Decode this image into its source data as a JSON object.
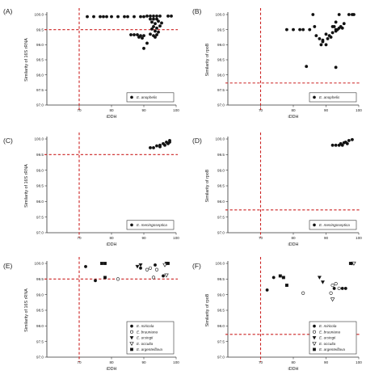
{
  "panels": [
    {
      "label": "(A)",
      "ylabel": "Similarity of 16S rRNA",
      "xlabel": "iDDH",
      "xlim": [
        60,
        100
      ],
      "ylim": [
        97.0,
        100.0
      ],
      "xticks": [
        "70",
        "80",
        "90",
        "100"
      ],
      "yticks": [
        "97.0",
        "97.5",
        "98.0",
        "98.5",
        "99.0",
        "99.5",
        "100.0"
      ],
      "cutoff_x": 70,
      "cutoff_y": 99.5,
      "legend": [
        {
          "name": "E. anophelis",
          "marker": "filled-circle"
        }
      ],
      "legend_position": "bottom-right",
      "series": [
        {
          "name": "E. anophelis",
          "marker": "filled-circle",
          "points": [
            [
              72.5,
              99.93
            ],
            [
              74.5,
              99.93
            ],
            [
              76.5,
              99.93
            ],
            [
              77.5,
              99.93
            ],
            [
              78.5,
              99.93
            ],
            [
              80,
              99.93
            ],
            [
              82,
              99.93
            ],
            [
              84,
              99.93
            ],
            [
              85,
              99.93
            ],
            [
              87,
              99.93
            ],
            [
              89,
              99.93
            ],
            [
              90,
              99.93
            ],
            [
              91,
              99.95
            ],
            [
              92,
              99.95
            ],
            [
              93,
              99.95
            ],
            [
              94,
              99.95
            ],
            [
              95,
              99.95
            ],
            [
              92,
              99.85
            ],
            [
              93,
              99.85
            ],
            [
              94,
              99.85
            ],
            [
              92.5,
              99.75
            ],
            [
              93.5,
              99.7
            ],
            [
              94.5,
              99.78
            ],
            [
              95.5,
              99.72
            ],
            [
              93,
              99.6
            ],
            [
              94,
              99.55
            ],
            [
              95,
              99.62
            ],
            [
              92.5,
              99.52
            ],
            [
              93.5,
              99.45
            ],
            [
              94.5,
              99.42
            ],
            [
              92,
              99.35
            ],
            [
              93,
              99.3
            ],
            [
              94,
              99.33
            ],
            [
              93.5,
              99.25
            ],
            [
              86,
              99.33
            ],
            [
              87,
              99.33
            ],
            [
              88,
              99.33
            ],
            [
              89,
              99.3
            ],
            [
              90,
              99.3
            ],
            [
              88.5,
              99.25
            ],
            [
              89.5,
              99.22
            ],
            [
              91,
              99.05
            ],
            [
              90,
              98.88
            ],
            [
              97.5,
              99.95
            ],
            [
              98.5,
              99.95
            ]
          ]
        }
      ]
    },
    {
      "label": "(B)",
      "ylabel": "Similarity of rpoB",
      "xlabel": "iDDH",
      "xlim": [
        60,
        100
      ],
      "ylim": [
        97.0,
        100.0
      ],
      "xticks": [
        "70",
        "80",
        "90",
        "100"
      ],
      "yticks": [
        "97.0",
        "97.5",
        "98.0",
        "98.5",
        "99.0",
        "99.5",
        "100.0"
      ],
      "cutoff_x": 70,
      "cutoff_y": 97.73,
      "legend": [
        {
          "name": "E. anophelis",
          "marker": "filled-circle"
        }
      ],
      "legend_position": "bottom-right",
      "series": [
        {
          "name": "E. anophelis",
          "marker": "filled-circle",
          "points": [
            [
              78,
              99.5
            ],
            [
              80,
              99.5
            ],
            [
              82,
              99.5
            ],
            [
              83,
              99.5
            ],
            [
              85,
              99.5
            ],
            [
              86,
              100.0
            ],
            [
              86.5,
              99.6
            ],
            [
              87,
              99.3
            ],
            [
              88,
              99.2
            ],
            [
              89,
              99.1
            ],
            [
              90,
              99.0
            ],
            [
              90.5,
              99.2
            ],
            [
              91,
              99.3
            ],
            [
              91.5,
              99.25
            ],
            [
              92,
              99.4
            ],
            [
              92.5,
              99.6
            ],
            [
              93,
              99.5
            ],
            [
              93.5,
              99.5
            ],
            [
              94,
              99.55
            ],
            [
              94.5,
              99.6
            ],
            [
              95,
              99.55
            ],
            [
              95.5,
              99.7
            ],
            [
              93,
              99.75
            ],
            [
              94,
              100.0
            ],
            [
              92,
              99.6
            ],
            [
              93,
              99.45
            ],
            [
              90,
              99.35
            ],
            [
              89,
              99.15
            ],
            [
              88.5,
              99.0
            ],
            [
              84,
              98.28
            ],
            [
              93,
              98.25
            ],
            [
              97,
              100.0
            ],
            [
              98,
              100.0
            ],
            [
              98.5,
              100.0
            ]
          ]
        }
      ]
    },
    {
      "label": "(C)",
      "ylabel": "Similarity of 16S rRNA",
      "xlabel": "iDDH",
      "xlim": [
        60,
        100
      ],
      "ylim": [
        97.0,
        100.0
      ],
      "xticks": [
        "70",
        "80",
        "90",
        "100"
      ],
      "yticks": [
        "97.0",
        "97.5",
        "98.0",
        "98.5",
        "99.0",
        "99.5",
        "100.0"
      ],
      "cutoff_x": 70,
      "cutoff_y": 99.5,
      "legend": [
        {
          "name": "E. meningoseptica",
          "marker": "filled-circle"
        }
      ],
      "legend_position": "bottom-right",
      "series": [
        {
          "name": "E. meningoseptica",
          "marker": "filled-circle",
          "points": [
            [
              92,
              99.72
            ],
            [
              93,
              99.72
            ],
            [
              94,
              99.78
            ],
            [
              95,
              99.8
            ],
            [
              96,
              99.85
            ],
            [
              97,
              99.9
            ],
            [
              98,
              99.95
            ],
            [
              96.5,
              99.8
            ],
            [
              97.5,
              99.85
            ],
            [
              95,
              99.75
            ],
            [
              98,
              99.9
            ]
          ]
        }
      ]
    },
    {
      "label": "(D)",
      "ylabel": "Similarity of rpoB",
      "xlabel": "iDDH",
      "xlim": [
        60,
        100
      ],
      "ylim": [
        97.0,
        100.0
      ],
      "xticks": [
        "70",
        "80",
        "90",
        "100"
      ],
      "yticks": [
        "97.0",
        "97.5",
        "98.0",
        "98.5",
        "99.0",
        "99.5",
        "100.0"
      ],
      "cutoff_x": 70,
      "cutoff_y": 97.73,
      "legend": [
        {
          "name": "E. meningoseptica",
          "marker": "filled-circle"
        }
      ],
      "legend_position": "bottom-right",
      "series": [
        {
          "name": "E. meningoseptica",
          "marker": "filled-circle",
          "points": [
            [
              92,
              99.8
            ],
            [
              93,
              99.8
            ],
            [
              94,
              99.8
            ],
            [
              94.5,
              99.85
            ],
            [
              95,
              99.8
            ],
            [
              95.5,
              99.88
            ],
            [
              96,
              99.9
            ],
            [
              97,
              99.95
            ],
            [
              98,
              99.98
            ],
            [
              96.5,
              99.85
            ]
          ]
        }
      ]
    },
    {
      "label": "(E)",
      "ylabel": "Similarity of 16S rRNA",
      "xlabel": "iDDH",
      "xlim": [
        60,
        100
      ],
      "ylim": [
        97.0,
        100.0
      ],
      "xticks": [
        "70",
        "80",
        "90",
        "100"
      ],
      "yticks": [
        "97.0",
        "97.5",
        "98.0",
        "98.5",
        "99.0",
        "99.5",
        "100.0"
      ],
      "cutoff_x": 70,
      "cutoff_y": 99.5,
      "legend": [
        {
          "name": "E. miricola",
          "marker": "filled-circle"
        },
        {
          "name": "E. bruuniana",
          "marker": "open-circle"
        },
        {
          "name": "E. ursingii",
          "marker": "filled-triangle"
        },
        {
          "name": "E. occulta",
          "marker": "open-triangle"
        },
        {
          "name": "E. argenteiflava",
          "marker": "filled-square"
        }
      ],
      "legend_position": "bottom-right",
      "series": [
        {
          "name": "E. miricola",
          "marker": "filled-circle",
          "points": [
            [
              72,
              99.9
            ],
            [
              75,
              99.45
            ],
            [
              89,
              99.85
            ],
            [
              93.5,
              99.95
            ],
            [
              96,
              99.6
            ]
          ]
        },
        {
          "name": "E. bruuniana",
          "marker": "open-circle",
          "points": [
            [
              82,
              99.5
            ],
            [
              91,
              99.8
            ],
            [
              92,
              99.85
            ],
            [
              94,
              99.8
            ],
            [
              93,
              99.55
            ]
          ]
        },
        {
          "name": "E. ursingii",
          "marker": "filled-triangle",
          "points": [
            [
              88,
              99.9
            ],
            [
              89,
              99.95
            ],
            [
              97,
              100.0
            ]
          ]
        },
        {
          "name": "E. occulta",
          "marker": "open-triangle",
          "points": [
            [
              96.5,
              99.95
            ],
            [
              97,
              99.62
            ]
          ]
        },
        {
          "name": "E. argenteiflava",
          "marker": "filled-square",
          "points": [
            [
              77,
              100.0
            ],
            [
              78,
              100.0
            ],
            [
              97.5,
              100.0
            ],
            [
              78,
              99.55
            ]
          ]
        }
      ]
    },
    {
      "label": "(F)",
      "ylabel": "Similarity of rpoB",
      "xlabel": "iDDH",
      "xlim": [
        60,
        100
      ],
      "ylim": [
        97.0,
        100.0
      ],
      "xticks": [
        "70",
        "80",
        "90",
        "100"
      ],
      "yticks": [
        "97.0",
        "97.5",
        "98.0",
        "98.5",
        "99.0",
        "99.5",
        "100.0"
      ],
      "cutoff_x": 70,
      "cutoff_y": 97.73,
      "legend": [
        {
          "name": "E. miricola",
          "marker": "filled-circle"
        },
        {
          "name": "E. bruuniana",
          "marker": "open-circle"
        },
        {
          "name": "E. ursingii",
          "marker": "filled-triangle"
        },
        {
          "name": "E. occulta",
          "marker": "open-triangle"
        },
        {
          "name": "E. argenteiflava",
          "marker": "filled-square"
        }
      ],
      "legend_position": "bottom-right",
      "series": [
        {
          "name": "E. miricola",
          "marker": "filled-circle",
          "points": [
            [
              72,
              99.15
            ],
            [
              74,
              99.55
            ],
            [
              92.5,
              99.2
            ],
            [
              95,
              99.2
            ],
            [
              96,
              99.2
            ]
          ]
        },
        {
          "name": "E. bruuniana",
          "marker": "open-circle",
          "points": [
            [
              83,
              99.05
            ],
            [
              91.5,
              99.05
            ],
            [
              92,
              99.3
            ],
            [
              93,
              99.35
            ],
            [
              94,
              99.2
            ]
          ]
        },
        {
          "name": "E. ursingii",
          "marker": "filled-triangle",
          "points": [
            [
              88,
              99.55
            ],
            [
              89,
              99.4
            ],
            [
              98,
              100.0
            ]
          ]
        },
        {
          "name": "E. occulta",
          "marker": "open-triangle",
          "points": [
            [
              92,
              98.85
            ],
            [
              98.5,
              100.0
            ]
          ]
        },
        {
          "name": "E. argenteiflava",
          "marker": "filled-square",
          "points": [
            [
              76,
              99.6
            ],
            [
              77,
              99.55
            ],
            [
              78,
              99.3
            ],
            [
              97.5,
              100.0
            ]
          ]
        }
      ]
    }
  ],
  "colors": {
    "cutoff": "#cc2222",
    "marker": "#111111",
    "axis": "#333333"
  }
}
